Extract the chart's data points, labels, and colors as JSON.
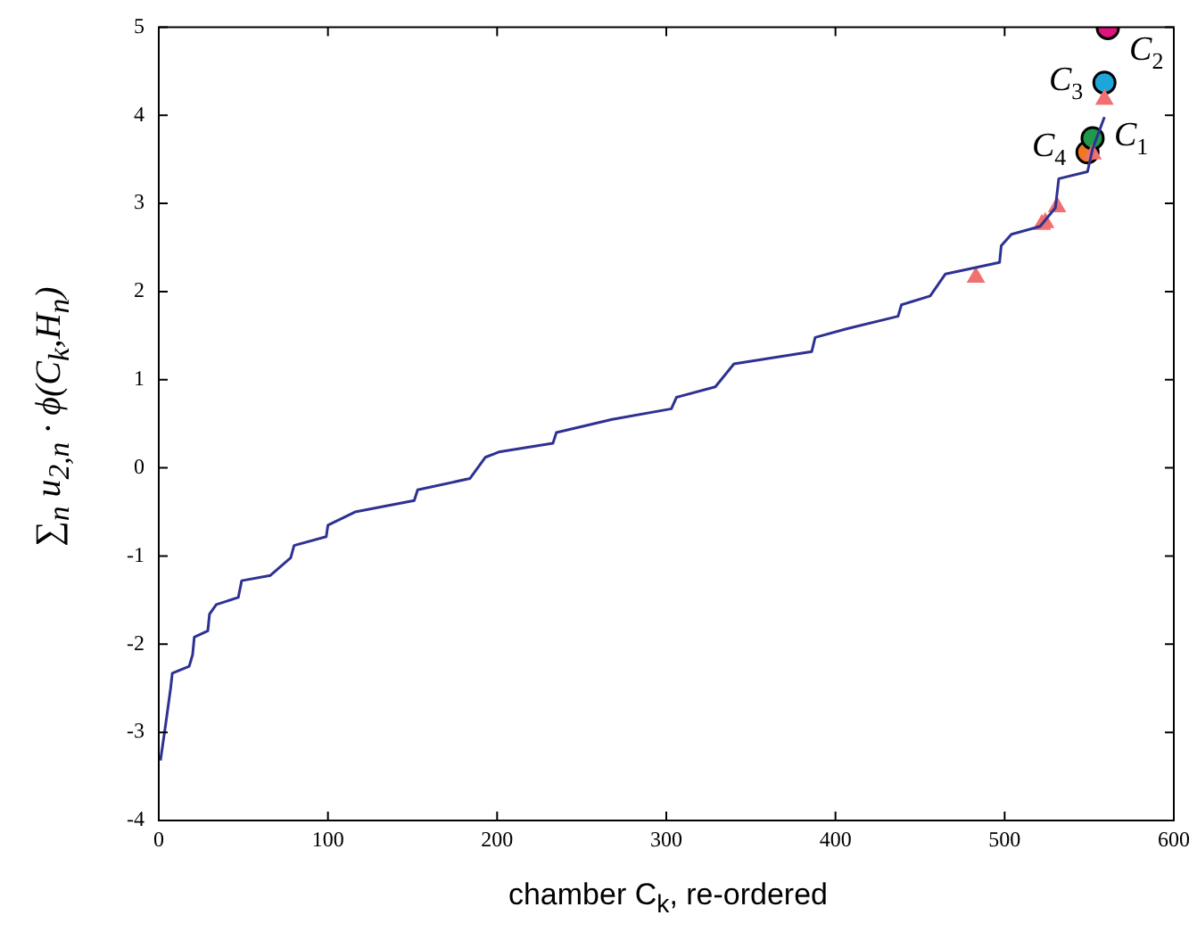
{
  "chart_data": {
    "type": "line",
    "xlabel": "chamber C$_{k}$, re-ordered",
    "ylabel": "∑$_{n}$ u$_{2,n}$ · ϕ(C$_{k}$,H$_{n}$)",
    "xlim": [
      0,
      600
    ],
    "xticks": [
      0,
      100,
      200,
      300,
      400,
      500,
      600
    ],
    "ylim": [
      -4,
      5
    ],
    "yticks": [
      -4,
      -3,
      -2,
      -1,
      0,
      1,
      2,
      3,
      4,
      5
    ],
    "grid": false,
    "legend": false,
    "series": [
      {
        "type": "line",
        "marker": "none",
        "color": "#2e3192",
        "x": [
          1,
          4,
          7,
          8,
          18,
          20,
          21,
          29,
          30,
          34,
          47,
          49,
          66,
          78,
          80,
          99,
          100,
          116,
          151,
          153,
          184,
          193,
          201,
          233,
          235,
          268,
          303,
          306,
          329,
          340,
          386,
          388,
          407,
          437,
          439,
          456,
          465,
          497,
          498,
          504,
          521,
          530,
          532,
          549,
          552,
          559
        ],
        "values": [
          -3.32,
          -2.92,
          -2.5,
          -2.33,
          -2.25,
          -2.12,
          -1.92,
          -1.85,
          -1.66,
          -1.55,
          -1.47,
          -1.28,
          -1.22,
          -1.02,
          -0.88,
          -0.78,
          -0.65,
          -0.5,
          -0.37,
          -0.25,
          -0.12,
          0.12,
          0.18,
          0.28,
          0.4,
          0.55,
          0.67,
          0.8,
          0.92,
          1.18,
          1.32,
          1.48,
          1.58,
          1.72,
          1.85,
          1.95,
          2.2,
          2.33,
          2.52,
          2.65,
          2.74,
          2.95,
          3.28,
          3.36,
          3.62,
          3.98
        ]
      },
      {
        "type": "scatter",
        "marker": "triangle",
        "color": "#f07070",
        "x": [
          483,
          522,
          524,
          531,
          552,
          559
        ],
        "values": [
          2.16,
          2.76,
          2.78,
          2.96,
          3.56,
          4.18
        ]
      },
      {
        "type": "scatter",
        "marker": "circle",
        "color": "#1e9a4a",
        "x": [
          552
        ],
        "values": [
          3.74
        ]
      },
      {
        "type": "scatter",
        "marker": "circle",
        "color": "#e0147c",
        "x": [
          561
        ],
        "values": [
          4.99
        ]
      },
      {
        "type": "scatter",
        "marker": "circle",
        "color": "#1ea6d9",
        "x": [
          559
        ],
        "values": [
          4.37
        ]
      },
      {
        "type": "scatter",
        "marker": "circle",
        "color": "#f07820",
        "x": [
          549
        ],
        "values": [
          3.58
        ]
      }
    ],
    "annotations": [
      {
        "text": "C$_{1}$",
        "x": 552,
        "y": 3.74
      },
      {
        "text": "C$_{2}$",
        "x": 561,
        "y": 4.99
      },
      {
        "text": "C$_{3}$",
        "x": 559,
        "y": 4.37
      },
      {
        "text": "C$_{4}$",
        "x": 549,
        "y": 3.58
      }
    ]
  }
}
